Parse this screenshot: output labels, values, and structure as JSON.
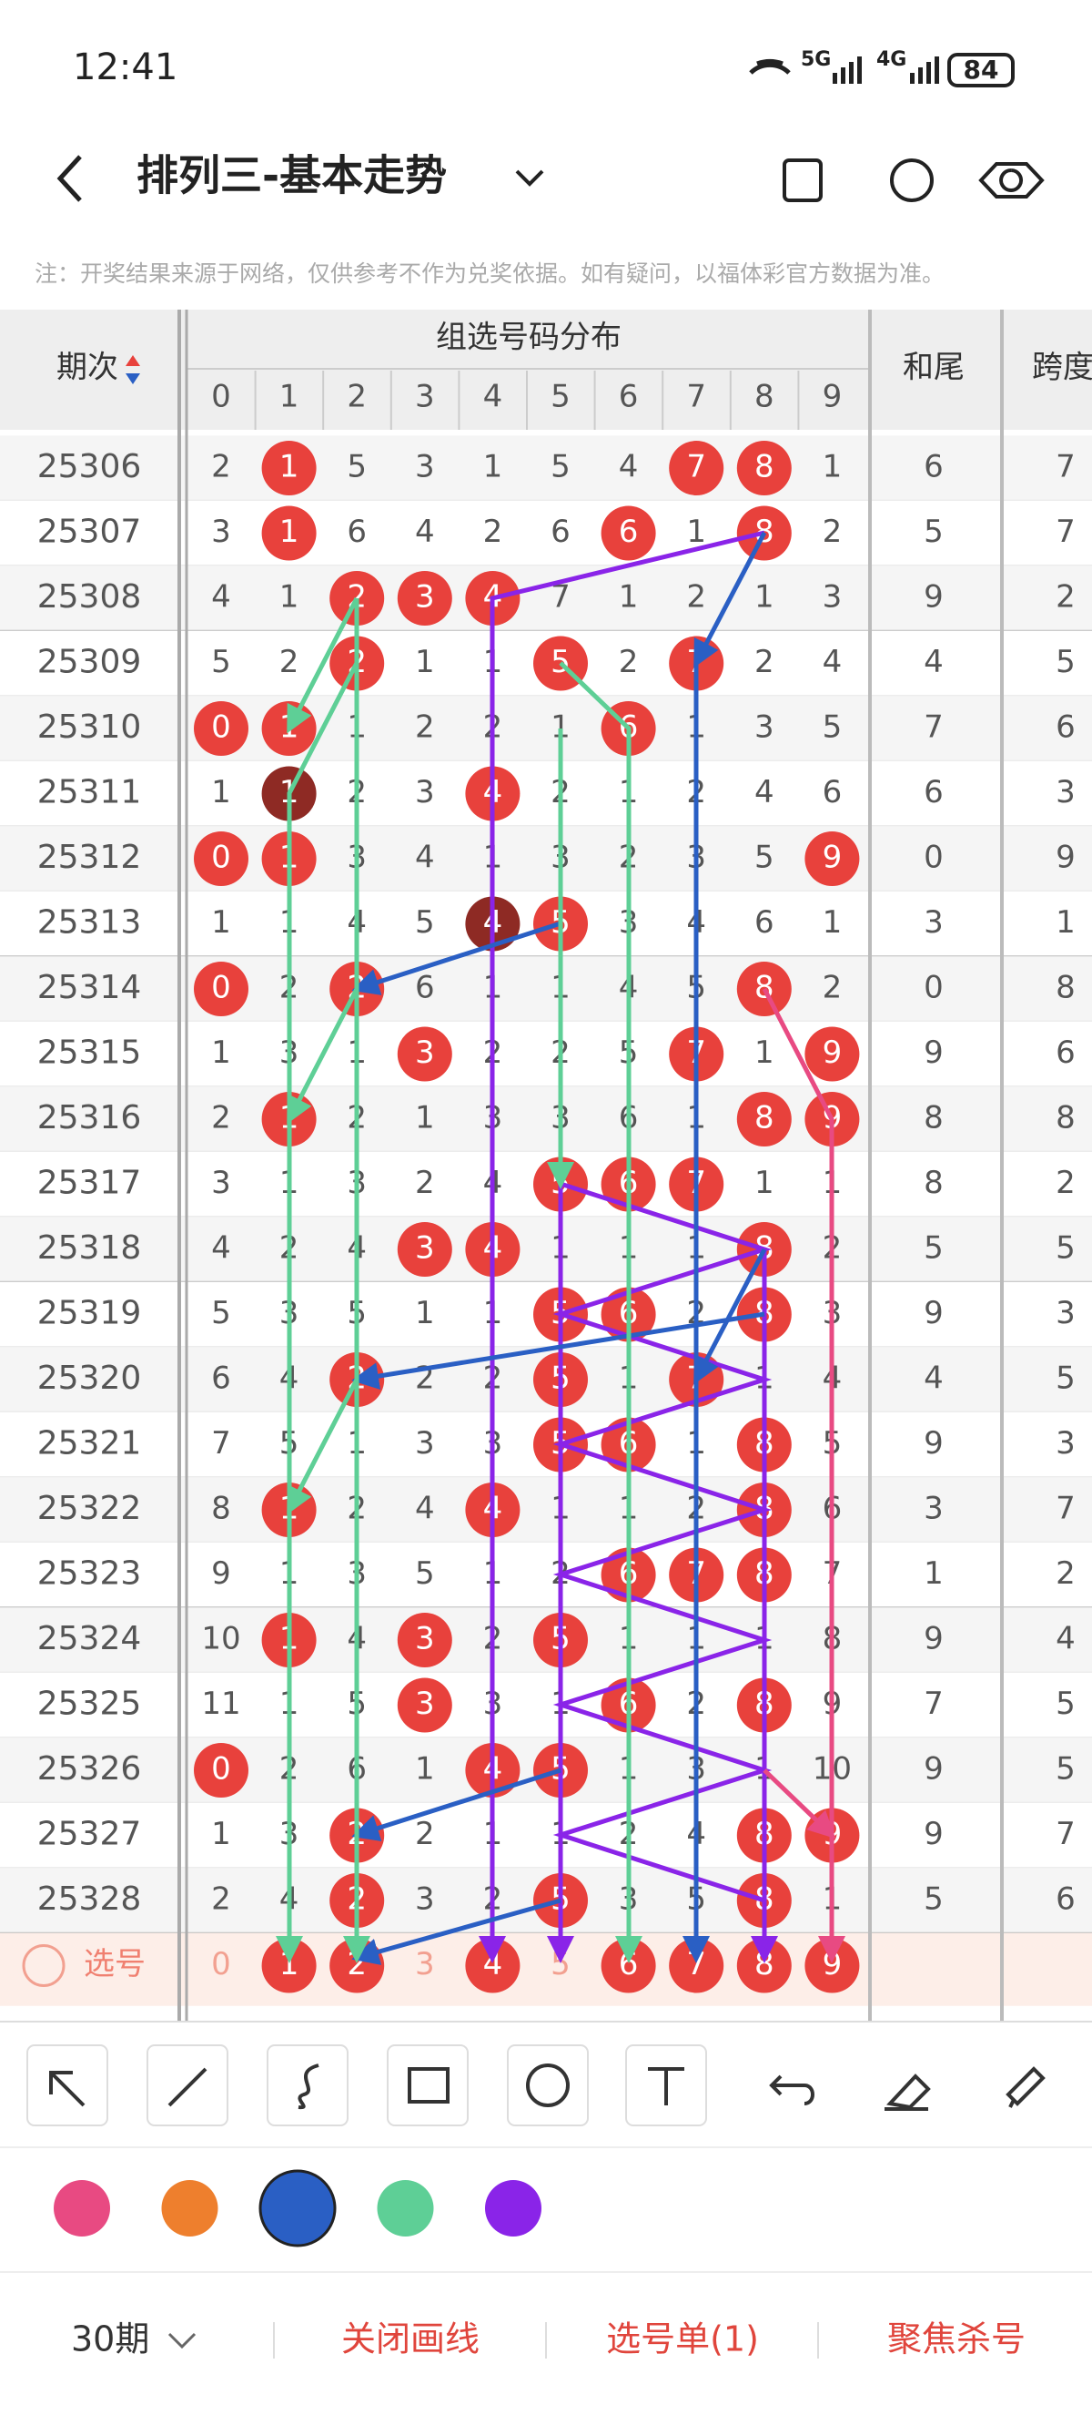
{
  "status": {
    "time": "12:41",
    "net1": "5G",
    "net2": "4G",
    "battery": "84"
  },
  "header": {
    "title": "排列三-基本走势"
  },
  "notice": "注：开奖结果来源于网络，仅供参考不作为兑奖依据。如有疑问，以福体彩官方数据为准。",
  "table": {
    "col_period": "期次",
    "col_group": "组选号码分布",
    "digits": [
      0,
      1,
      2,
      3,
      4,
      5,
      6,
      7,
      8,
      9
    ],
    "col_tail": "和尾",
    "col_span": "跨度",
    "rows": [
      {
        "period": "25306",
        "cells": [
          2,
          1,
          5,
          3,
          1,
          5,
          4,
          7,
          8,
          1
        ],
        "balls": [
          1,
          7,
          8
        ],
        "repeat": [],
        "tail": 6,
        "span": 7
      },
      {
        "period": "25307",
        "cells": [
          3,
          1,
          6,
          4,
          2,
          6,
          6,
          1,
          8,
          2
        ],
        "balls": [
          1,
          6,
          8
        ],
        "repeat": [],
        "tail": 5,
        "span": 7
      },
      {
        "period": "25308",
        "cells": [
          4,
          1,
          2,
          3,
          4,
          7,
          1,
          2,
          1,
          3
        ],
        "balls": [
          2,
          3,
          4
        ],
        "repeat": [],
        "tail": 9,
        "span": 2
      },
      {
        "period": "25309",
        "cells": [
          5,
          2,
          2,
          1,
          1,
          5,
          2,
          7,
          2,
          4
        ],
        "balls": [
          2,
          5,
          7
        ],
        "repeat": [],
        "tail": 4,
        "span": 5
      },
      {
        "period": "25310",
        "cells": [
          0,
          1,
          1,
          2,
          2,
          1,
          6,
          1,
          3,
          5
        ],
        "balls": [
          0,
          1,
          6
        ],
        "repeat": [],
        "tail": 7,
        "span": 6
      },
      {
        "period": "25311",
        "cells": [
          1,
          1,
          2,
          3,
          4,
          2,
          1,
          2,
          4,
          6
        ],
        "balls": [
          1,
          4
        ],
        "repeat": [
          1
        ],
        "tail": 6,
        "span": 3
      },
      {
        "period": "25312",
        "cells": [
          0,
          1,
          3,
          4,
          1,
          3,
          2,
          3,
          5,
          9
        ],
        "balls": [
          0,
          1,
          9
        ],
        "repeat": [],
        "tail": 0,
        "span": 9
      },
      {
        "period": "25313",
        "cells": [
          1,
          1,
          4,
          5,
          4,
          5,
          3,
          4,
          6,
          1
        ],
        "balls": [
          4,
          5
        ],
        "repeat": [
          4
        ],
        "tail": 3,
        "span": 1
      },
      {
        "period": "25314",
        "cells": [
          0,
          2,
          2,
          6,
          1,
          1,
          4,
          5,
          8,
          2
        ],
        "balls": [
          0,
          2,
          8
        ],
        "repeat": [],
        "tail": 0,
        "span": 8
      },
      {
        "period": "25315",
        "cells": [
          1,
          3,
          1,
          3,
          2,
          2,
          5,
          7,
          1,
          9
        ],
        "balls": [
          3,
          7,
          9
        ],
        "repeat": [],
        "tail": 9,
        "span": 6
      },
      {
        "period": "25316",
        "cells": [
          2,
          1,
          2,
          1,
          3,
          3,
          6,
          1,
          8,
          9
        ],
        "balls": [
          1,
          8,
          9
        ],
        "repeat": [],
        "tail": 8,
        "span": 8
      },
      {
        "period": "25317",
        "cells": [
          3,
          1,
          3,
          2,
          4,
          5,
          6,
          7,
          1,
          1
        ],
        "balls": [
          5,
          6,
          7
        ],
        "repeat": [],
        "tail": 8,
        "span": 2
      },
      {
        "period": "25318",
        "cells": [
          4,
          2,
          4,
          3,
          4,
          1,
          1,
          1,
          8,
          2
        ],
        "balls": [
          3,
          4,
          8
        ],
        "repeat": [],
        "tail": 5,
        "span": 5
      },
      {
        "period": "25319",
        "cells": [
          5,
          3,
          5,
          1,
          1,
          5,
          6,
          2,
          8,
          3
        ],
        "balls": [
          5,
          6,
          8
        ],
        "repeat": [],
        "tail": 9,
        "span": 3
      },
      {
        "period": "25320",
        "cells": [
          6,
          4,
          2,
          2,
          2,
          5,
          1,
          7,
          1,
          4
        ],
        "balls": [
          2,
          5,
          7
        ],
        "repeat": [],
        "tail": 4,
        "span": 5
      },
      {
        "period": "25321",
        "cells": [
          7,
          5,
          1,
          3,
          3,
          5,
          6,
          1,
          8,
          5
        ],
        "balls": [
          5,
          6,
          8
        ],
        "repeat": [],
        "tail": 9,
        "span": 3
      },
      {
        "period": "25322",
        "cells": [
          8,
          1,
          2,
          4,
          4,
          1,
          1,
          2,
          8,
          6
        ],
        "balls": [
          1,
          4,
          8
        ],
        "repeat": [],
        "tail": 3,
        "span": 7
      },
      {
        "period": "25323",
        "cells": [
          9,
          1,
          3,
          5,
          1,
          2,
          6,
          7,
          8,
          7
        ],
        "balls": [
          6,
          7,
          8
        ],
        "repeat": [],
        "tail": 1,
        "span": 2
      },
      {
        "period": "25324",
        "cells": [
          10,
          1,
          4,
          3,
          2,
          5,
          1,
          1,
          1,
          8
        ],
        "balls": [
          1,
          3,
          5
        ],
        "repeat": [],
        "tail": 9,
        "span": 4
      },
      {
        "period": "25325",
        "cells": [
          11,
          1,
          5,
          3,
          3,
          1,
          6,
          2,
          8,
          9
        ],
        "balls": [
          3,
          6,
          8
        ],
        "repeat": [],
        "tail": 7,
        "span": 5
      },
      {
        "period": "25326",
        "cells": [
          0,
          2,
          6,
          1,
          4,
          5,
          1,
          3,
          1,
          10
        ],
        "balls": [
          0,
          4,
          5
        ],
        "repeat": [],
        "tail": 9,
        "span": 5
      },
      {
        "period": "25327",
        "cells": [
          1,
          3,
          2,
          2,
          1,
          1,
          2,
          4,
          8,
          9
        ],
        "balls": [
          2,
          8,
          9
        ],
        "repeat": [],
        "tail": 9,
        "span": 7
      },
      {
        "period": "25328",
        "cells": [
          2,
          4,
          2,
          3,
          2,
          5,
          3,
          5,
          8,
          1
        ],
        "balls": [
          2,
          5,
          8
        ],
        "repeat": [],
        "tail": 5,
        "span": 6
      }
    ],
    "select": {
      "label": "选号",
      "cells": [
        0,
        1,
        2,
        3,
        4,
        5,
        6,
        7,
        8,
        9
      ],
      "balls": [
        1,
        2,
        4,
        6,
        7,
        8,
        9
      ]
    }
  },
  "palette": {
    "colors": [
      "#e84a82",
      "#ee7f2d",
      "#2a5fc4",
      "#5ecf96",
      "#8a24e8"
    ],
    "selected": 2
  },
  "footer": {
    "period": "30期",
    "close": "关闭画线",
    "list": "选号单(1)",
    "focus": "聚焦杀号"
  }
}
